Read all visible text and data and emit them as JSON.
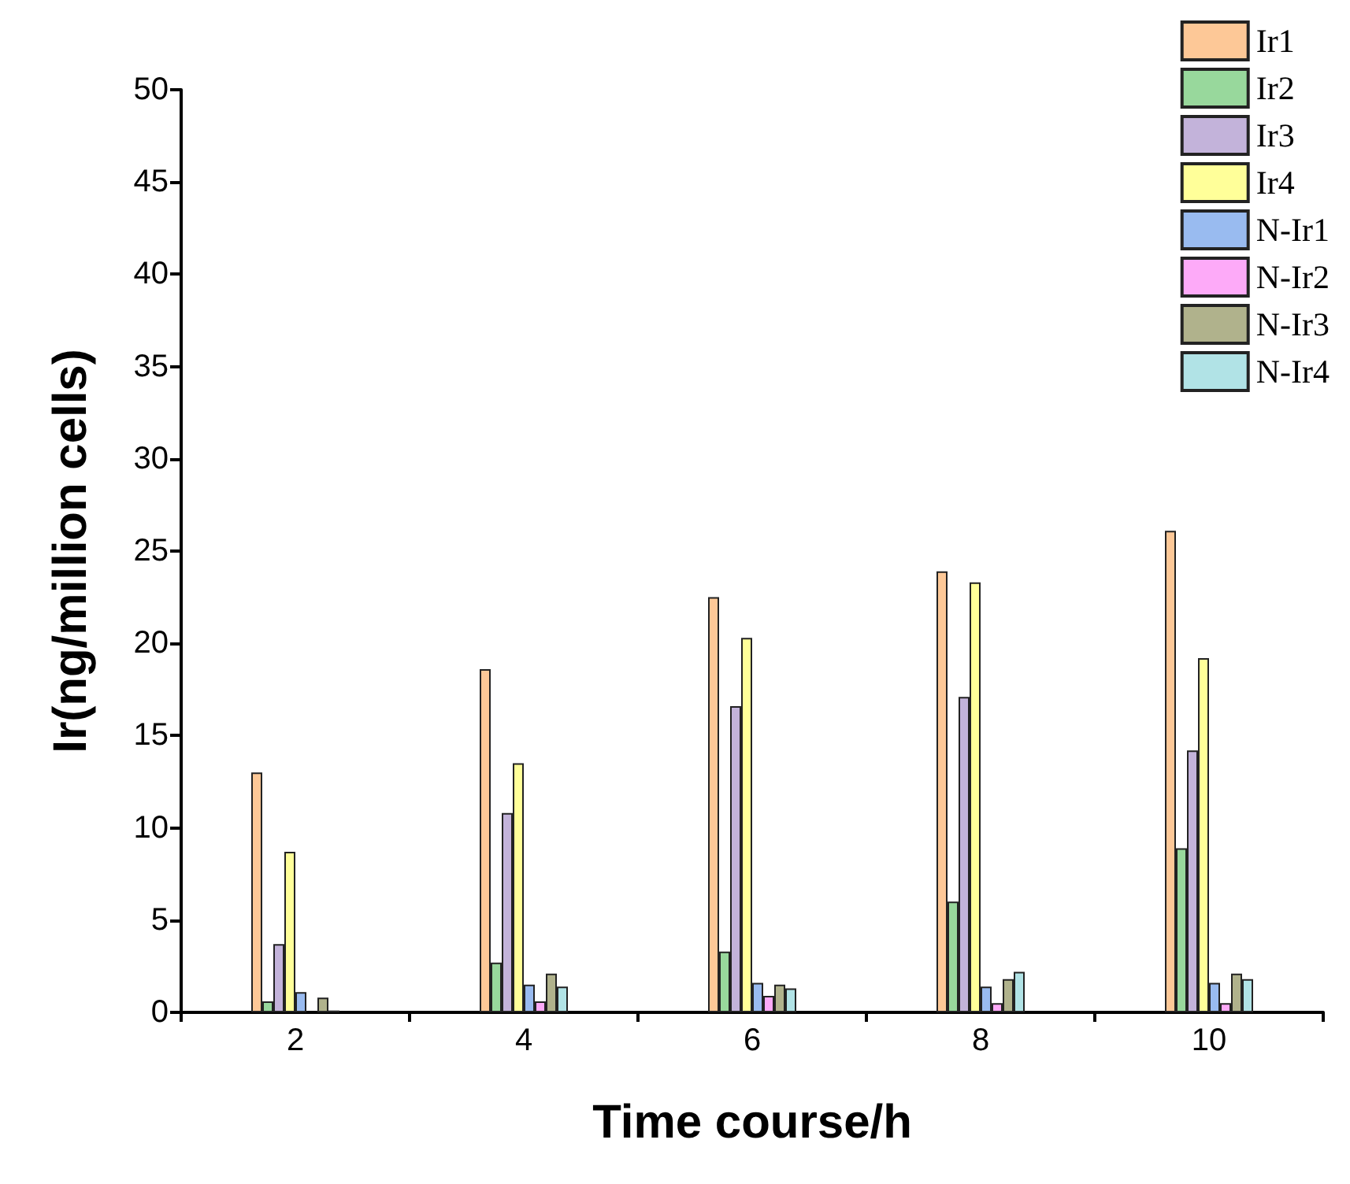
{
  "chart_data": {
    "type": "bar",
    "xlabel": "Time course/h",
    "ylabel": "Ir(ng/million cells)",
    "categories": [
      "2",
      "4",
      "6",
      "8",
      "10"
    ],
    "ylim": [
      0,
      50
    ],
    "yticks": [
      0,
      5,
      10,
      15,
      20,
      25,
      30,
      35,
      40,
      45,
      50
    ],
    "grid": false,
    "legend": "top right",
    "series": [
      {
        "name": "Ir1",
        "color": "#fdc897",
        "values": [
          13.0,
          18.6,
          22.5,
          23.9,
          26.1
        ]
      },
      {
        "name": "Ir2",
        "color": "#98d89c",
        "values": [
          0.6,
          2.7,
          3.3,
          6.0,
          8.9
        ]
      },
      {
        "name": "Ir3",
        "color": "#c3b3da",
        "values": [
          3.7,
          10.8,
          16.6,
          17.1,
          14.2
        ]
      },
      {
        "name": "Ir4",
        "color": "#ffff99",
        "values": [
          8.7,
          13.5,
          20.3,
          23.3,
          19.2
        ]
      },
      {
        "name": "N-Ir1",
        "color": "#99bbf0",
        "values": [
          1.1,
          1.5,
          1.6,
          1.4,
          1.6
        ]
      },
      {
        "name": "N-Ir2",
        "color": "#fdaaf8",
        "values": [
          null,
          0.6,
          0.9,
          0.5,
          0.5
        ]
      },
      {
        "name": "N-Ir3",
        "color": "#b0b28c",
        "values": [
          0.8,
          2.1,
          1.5,
          1.8,
          2.1
        ]
      },
      {
        "name": "N-Ir4",
        "color": "#b1e3e6",
        "values": [
          0.1,
          1.4,
          1.3,
          2.2,
          1.8
        ]
      }
    ]
  }
}
